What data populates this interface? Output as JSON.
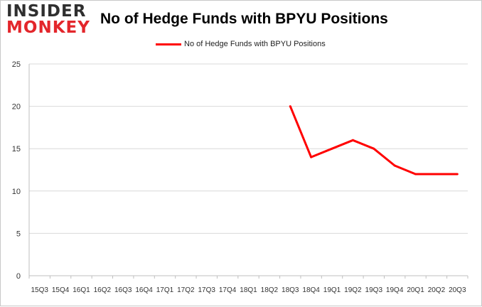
{
  "brand": {
    "line1": "INSIDER",
    "line2": "MONKEY"
  },
  "colors": {
    "series": "#ff0000",
    "grid": "#d9d9d9",
    "axis": "#bfbfbf",
    "brand_red": "#e3262b"
  },
  "chart_data": {
    "type": "line",
    "title": "No of Hedge Funds with BPYU Positions",
    "xlabel": "",
    "ylabel": "",
    "ylim": [
      0,
      25
    ],
    "yticks": [
      0,
      5,
      10,
      15,
      20,
      25
    ],
    "grid": true,
    "legend_position": "top-center",
    "categories": [
      "15Q3",
      "15Q4",
      "16Q1",
      "16Q2",
      "16Q3",
      "16Q4",
      "17Q1",
      "17Q2",
      "17Q3",
      "17Q4",
      "18Q1",
      "18Q2",
      "18Q3",
      "18Q4",
      "19Q1",
      "19Q2",
      "19Q3",
      "19Q4",
      "20Q1",
      "20Q2",
      "20Q3"
    ],
    "series": [
      {
        "name": "No of Hedge Funds with BPYU Positions",
        "values": [
          null,
          null,
          null,
          null,
          null,
          null,
          null,
          null,
          null,
          null,
          null,
          null,
          20,
          14,
          15,
          16,
          15,
          13,
          12,
          12,
          12
        ]
      }
    ]
  }
}
